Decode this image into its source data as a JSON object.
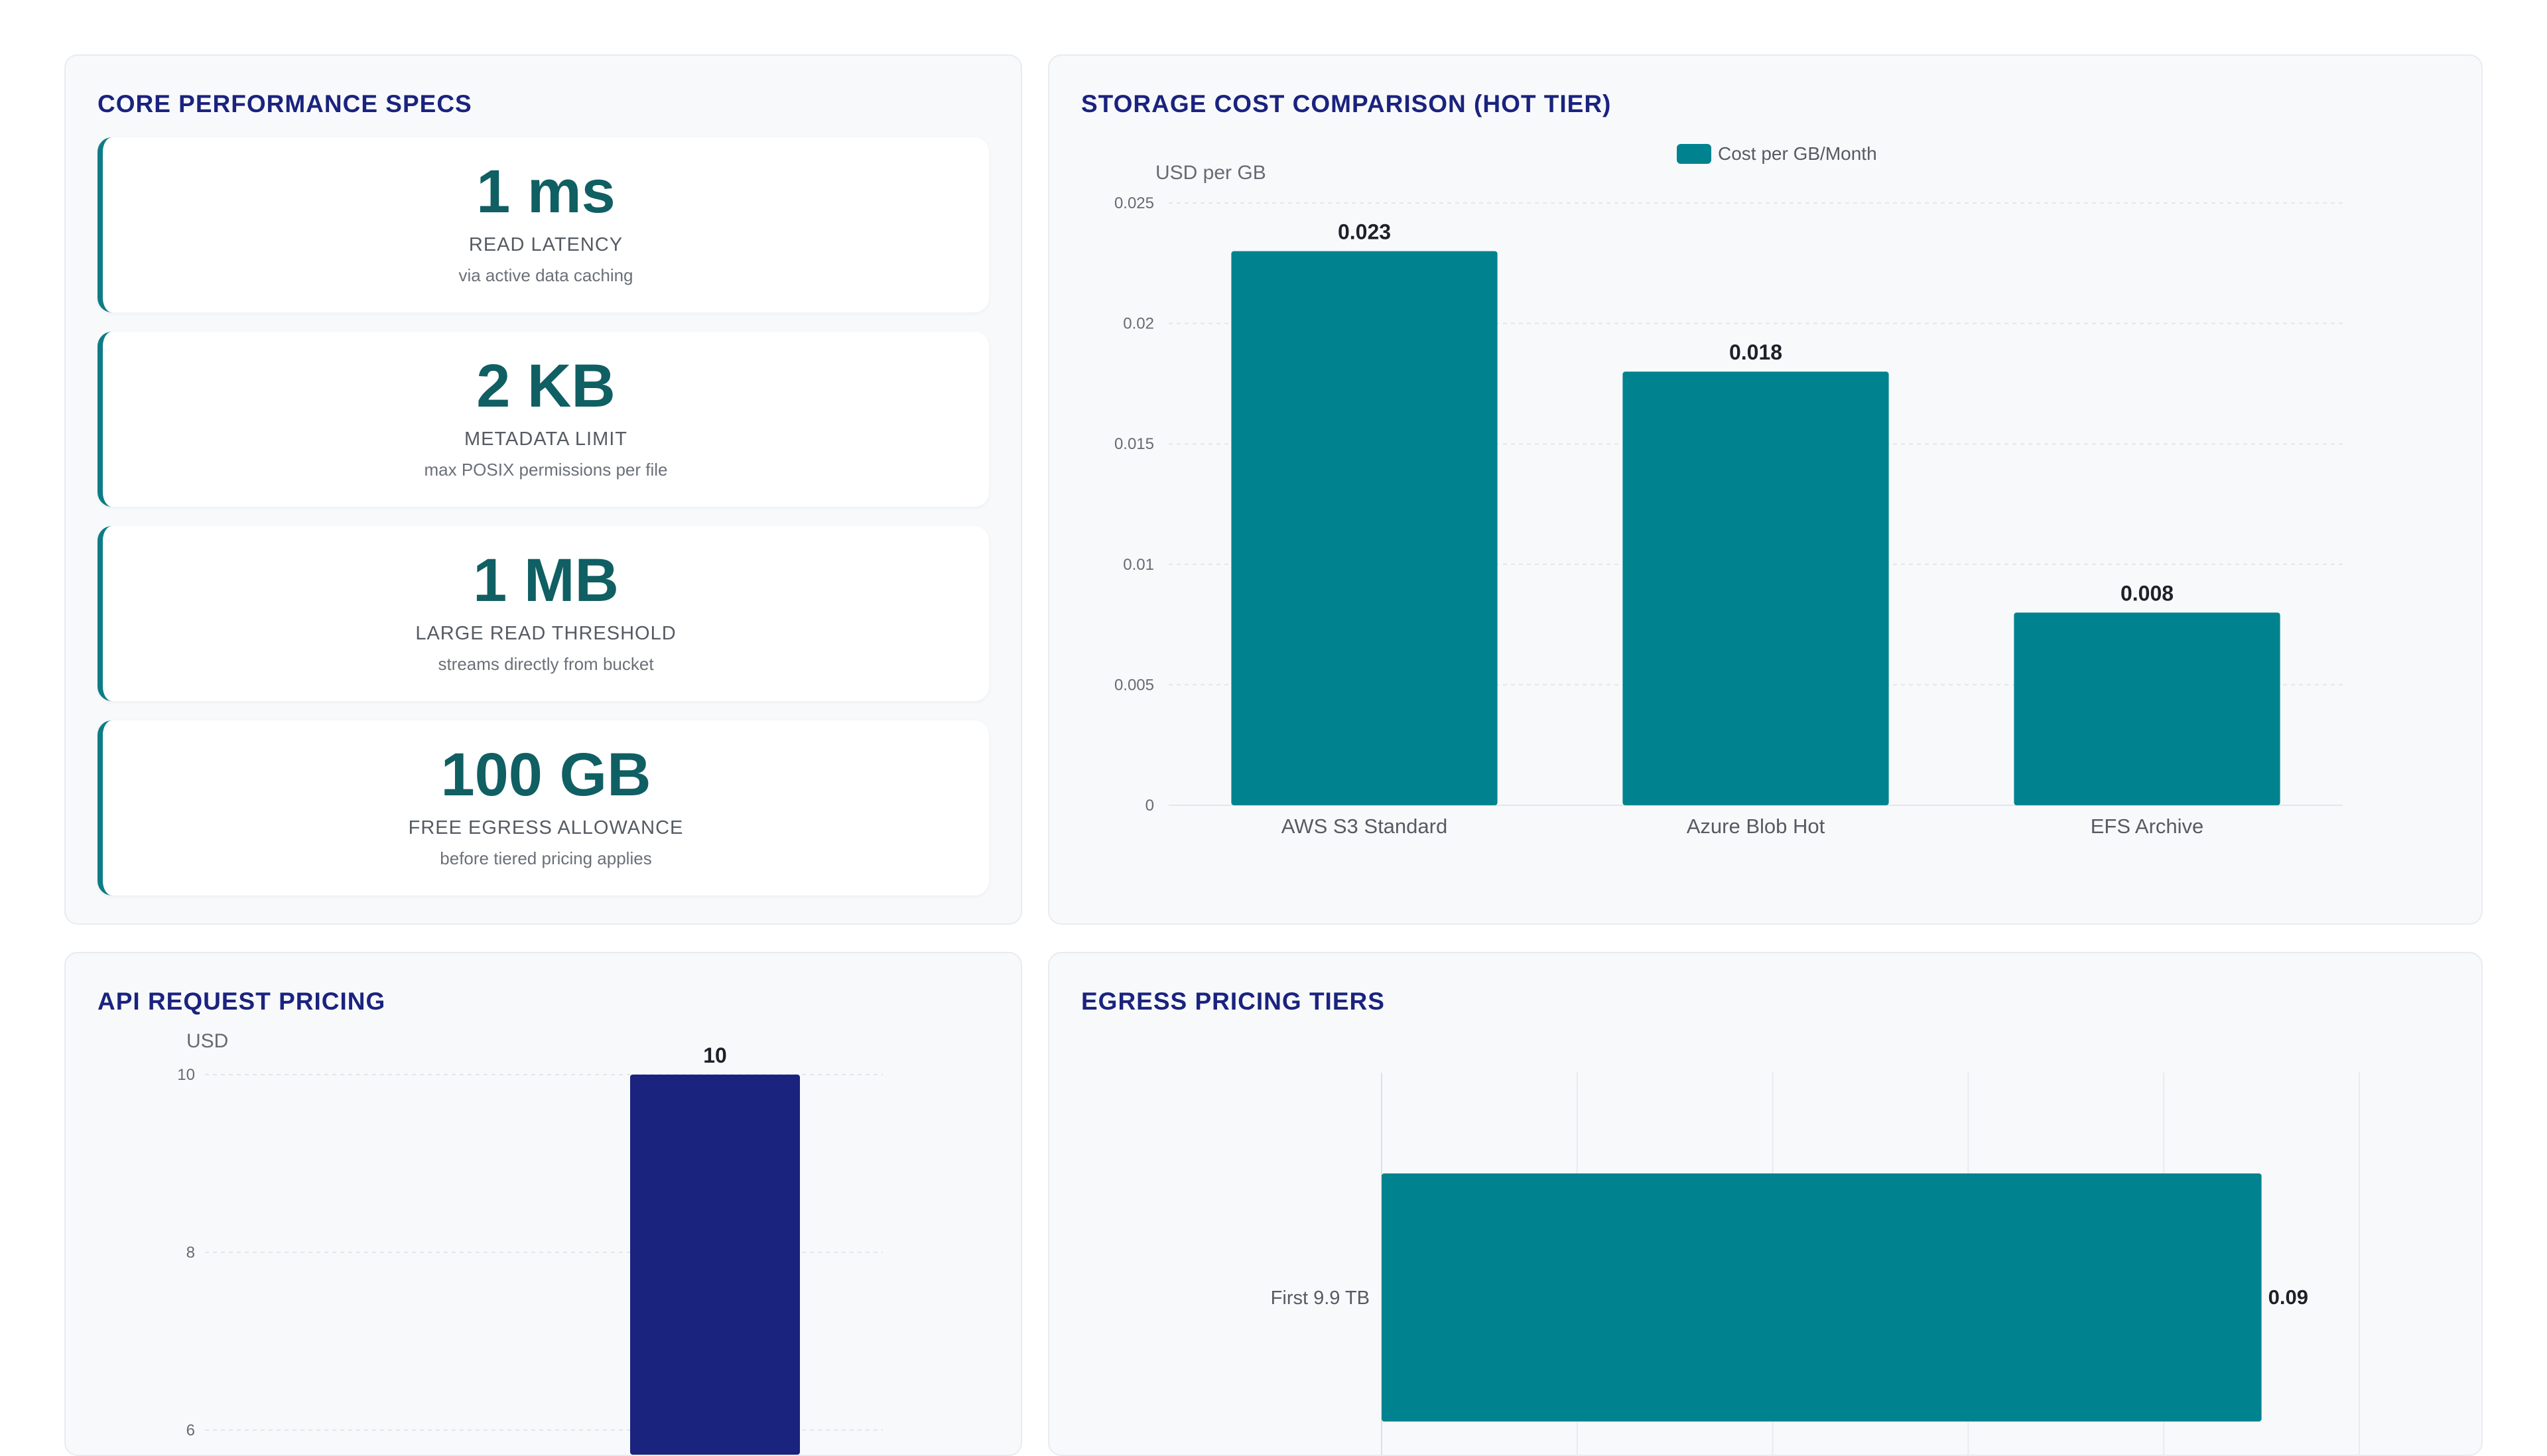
{
  "specs": {
    "title": "CORE PERFORMANCE SPECS",
    "items": [
      {
        "value": "1 ms",
        "label": "READ LATENCY",
        "sub": "via active data caching"
      },
      {
        "value": "2 KB",
        "label": "METADATA LIMIT",
        "sub": "max POSIX permissions per file"
      },
      {
        "value": "1 MB",
        "label": "LARGE READ THRESHOLD",
        "sub": "streams directly from bucket"
      },
      {
        "value": "100 GB",
        "label": "FREE EGRESS ALLOWANCE",
        "sub": "before tiered pricing applies"
      }
    ]
  },
  "colors": {
    "teal": "#00838f",
    "navy": "#1a237e",
    "spec_value": "#0f5f63"
  },
  "chart_data": [
    {
      "type": "bar",
      "title": "STORAGE COST COMPARISON (HOT TIER)",
      "ylabel": "USD per GB",
      "xlabel": "",
      "categories": [
        "AWS S3 Standard",
        "Azure Blob Hot",
        "EFS Archive"
      ],
      "series": [
        {
          "name": "Cost per GB/Month",
          "values": [
            0.023,
            0.018,
            0.008
          ],
          "color": "#00838f"
        }
      ],
      "ylim": [
        0,
        0.025
      ],
      "yticks": [
        0,
        0.005,
        0.01,
        0.015,
        0.02,
        0.025
      ],
      "ytick_labels": [
        "0",
        "0.005",
        "0.01",
        "0.015",
        "0.02",
        "0.025"
      ],
      "legend": "top-center",
      "grid": true
    },
    {
      "type": "bar",
      "title": "API REQUEST PRICING",
      "ylabel": "USD",
      "xlabel": "",
      "categories": [
        ""
      ],
      "series": [
        {
          "values": [
            10
          ],
          "color": "#1a237e"
        }
      ],
      "ylim": [
        0,
        10
      ],
      "yticks": [
        6,
        8,
        10
      ],
      "ytick_labels": [
        "6",
        "8",
        "10"
      ],
      "grid": true
    },
    {
      "type": "bar",
      "orientation": "horizontal",
      "title": "EGRESS PRICING TIERS",
      "categories": [
        "First 9.9 TB"
      ],
      "series": [
        {
          "values": [
            0.09
          ],
          "color": "#00838f"
        }
      ],
      "xlim": [
        0,
        0.1
      ],
      "grid": true
    }
  ]
}
